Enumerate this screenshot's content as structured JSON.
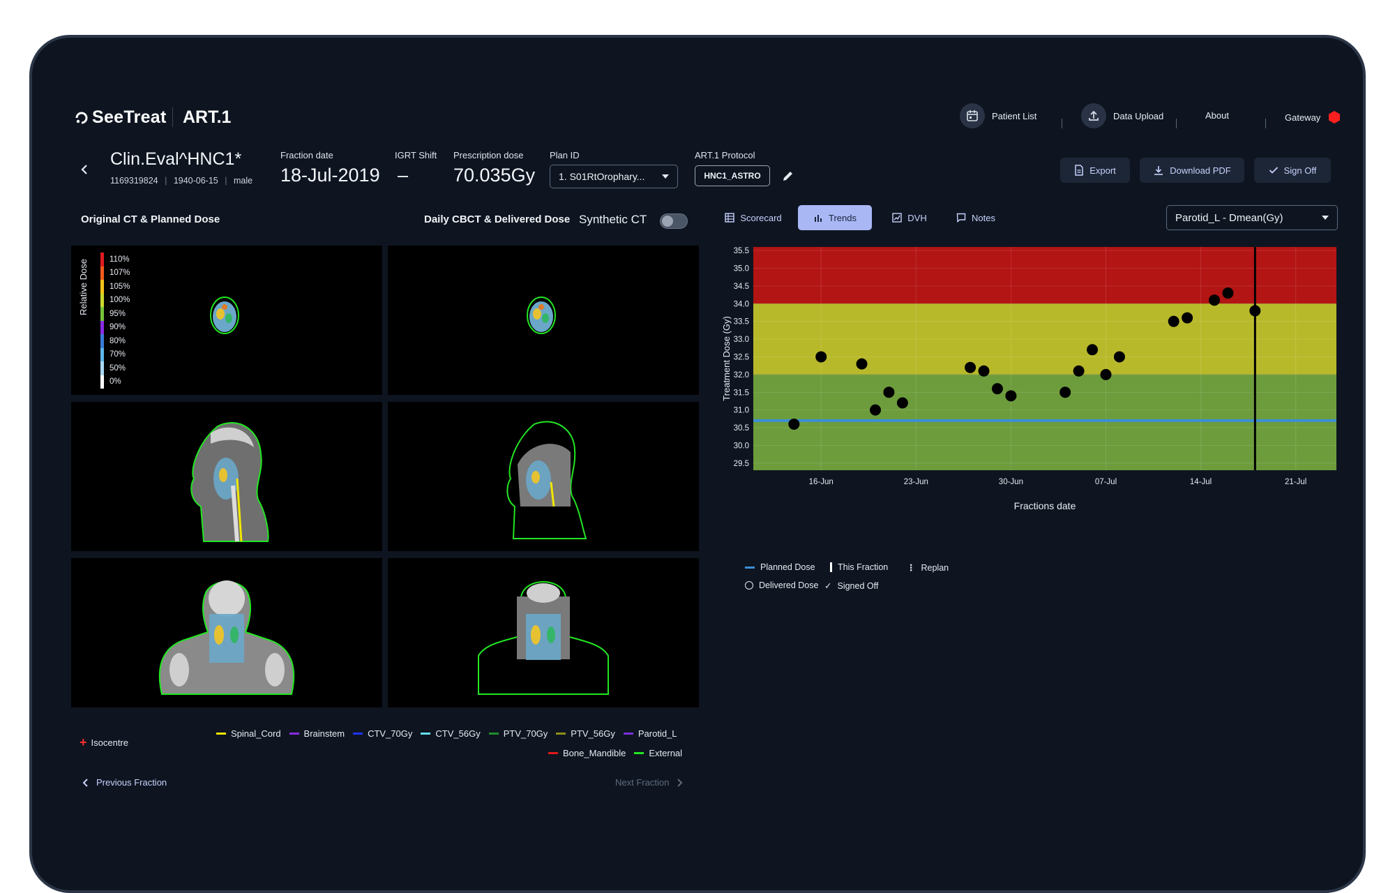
{
  "brand": {
    "logo": "SeeTreat",
    "app": "ART.1"
  },
  "nav": {
    "patient_list": "Patient List",
    "data_upload": "Data Upload",
    "about": "About",
    "gateway": "Gateway"
  },
  "patient": {
    "name": "Clin.Eval^HNC1*",
    "id": "1169319824",
    "dob": "1940-06-15",
    "sex": "male"
  },
  "fields": {
    "fraction_date_label": "Fraction date",
    "fraction_date": "18-Jul-2019",
    "igrt_label": "IGRT Shift",
    "igrt_value": "–",
    "prescription_label": "Prescription dose",
    "prescription_value": "70.035Gy",
    "plan_label": "Plan ID",
    "plan_value": "1. S01RtOrophary...",
    "protocol_label": "ART.1 Protocol",
    "protocol_value": "HNC1_ASTRO"
  },
  "actions": {
    "export": "Export",
    "download": "Download PDF",
    "signoff": "Sign Off"
  },
  "left": {
    "original_title": "Original CT & Planned Dose",
    "daily_title": "Daily CBCT & Delivered Dose",
    "synthetic_label": "Synthetic CT",
    "relative_dose": "Relative Dose",
    "dose_scale": [
      {
        "label": "110%",
        "color": "#e01a22"
      },
      {
        "label": "107%",
        "color": "#f25a1d"
      },
      {
        "label": "105%",
        "color": "#f4c21a"
      },
      {
        "label": "100%",
        "color": "#c9d82b"
      },
      {
        "label": "95%",
        "color": "#75c33a"
      },
      {
        "label": "90%",
        "color": "#8a2be2"
      },
      {
        "label": "80%",
        "color": "#3a7bd5"
      },
      {
        "label": "70%",
        "color": "#5fb6e8"
      },
      {
        "label": "50%",
        "color": "#a9d8f2"
      },
      {
        "label": "0%",
        "color": "#ffffff"
      }
    ],
    "isocentre": "Isocentre",
    "structures": [
      {
        "name": "Spinal_Cord",
        "color": "#f2e600"
      },
      {
        "name": "Brainstem",
        "color": "#8a2be2"
      },
      {
        "name": "CTV_70Gy",
        "color": "#1f33ff"
      },
      {
        "name": "CTV_56Gy",
        "color": "#63e0f0"
      },
      {
        "name": "PTV_70Gy",
        "color": "#1e8f2a"
      },
      {
        "name": "PTV_56Gy",
        "color": "#8f8f1a"
      },
      {
        "name": "Parotid_L",
        "color": "#7b2fe0"
      },
      {
        "name": "Bone_Mandible",
        "color": "#e01a1a"
      },
      {
        "name": "External",
        "color": "#22e622"
      }
    ],
    "prev_fraction": "Previous Fraction",
    "next_fraction": "Next Fraction"
  },
  "tabs": {
    "scorecard": "Scorecard",
    "trends": "Trends",
    "dvh": "DVH",
    "notes": "Notes",
    "active": "Trends"
  },
  "metric_select": "Parotid_L - Dmean(Gy)",
  "chart_data": {
    "type": "scatter",
    "xlabel": "Fractions date",
    "ylabel": "Treatment Dose (Gy)",
    "ylim": [
      29.3,
      35.6
    ],
    "xlim": [
      "2019-06-11",
      "2019-07-24"
    ],
    "x_ticks": [
      {
        "date": "2019-06-16",
        "label": "16-Jun"
      },
      {
        "date": "2019-06-23",
        "label": "23-Jun"
      },
      {
        "date": "2019-06-30",
        "label": "30-Jun"
      },
      {
        "date": "2019-07-07",
        "label": "07-Jul"
      },
      {
        "date": "2019-07-14",
        "label": "14-Jul"
      },
      {
        "date": "2019-07-21",
        "label": "21-Jul"
      }
    ],
    "y_ticks": [
      "29.5",
      "30.0",
      "30.5",
      "31.0",
      "31.5",
      "32.0",
      "32.5",
      "33.0",
      "33.5",
      "34.0",
      "34.5",
      "35.0",
      "35.5"
    ],
    "bands": [
      {
        "from": 34.0,
        "to": 35.6,
        "color": "#b31414"
      },
      {
        "from": 32.0,
        "to": 34.0,
        "color": "#b8b92a"
      },
      {
        "from": 29.3,
        "to": 32.0,
        "color": "#6d9c3c"
      }
    ],
    "planned_dose": 30.7,
    "planned_color": "#3b8fd6",
    "this_fraction": "2019-07-18",
    "points": [
      {
        "x": "2019-06-14",
        "y": 30.6
      },
      {
        "x": "2019-06-16",
        "y": 32.5
      },
      {
        "x": "2019-06-19",
        "y": 32.3
      },
      {
        "x": "2019-06-20",
        "y": 31.0
      },
      {
        "x": "2019-06-21",
        "y": 31.5
      },
      {
        "x": "2019-06-22",
        "y": 31.2
      },
      {
        "x": "2019-06-27",
        "y": 32.2
      },
      {
        "x": "2019-06-28",
        "y": 32.1
      },
      {
        "x": "2019-06-29",
        "y": 31.6
      },
      {
        "x": "2019-06-30",
        "y": 31.4
      },
      {
        "x": "2019-07-04",
        "y": 31.5
      },
      {
        "x": "2019-07-05",
        "y": 32.1
      },
      {
        "x": "2019-07-06",
        "y": 32.7
      },
      {
        "x": "2019-07-07",
        "y": 32.0
      },
      {
        "x": "2019-07-08",
        "y": 32.5
      },
      {
        "x": "2019-07-12",
        "y": 33.5
      },
      {
        "x": "2019-07-13",
        "y": 33.6
      },
      {
        "x": "2019-07-15",
        "y": 34.1
      },
      {
        "x": "2019-07-16",
        "y": 34.3
      },
      {
        "x": "2019-07-18",
        "y": 33.8
      }
    ],
    "legend": {
      "planned": "Planned Dose",
      "this_fraction": "This Fraction",
      "replan": "Replan",
      "delivered": "Delivered Dose",
      "signed_off": "Signed Off"
    }
  }
}
